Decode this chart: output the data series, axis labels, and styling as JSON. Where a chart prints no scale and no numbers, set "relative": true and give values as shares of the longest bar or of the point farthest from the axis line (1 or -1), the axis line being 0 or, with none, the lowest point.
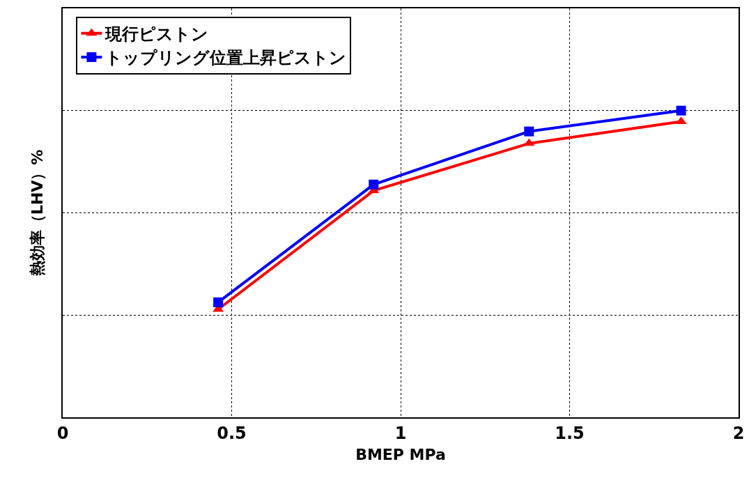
{
  "chart_data": {
    "type": "line",
    "xlabel": "BMEP MPa",
    "ylabel": "熱効率（LHV）%",
    "relative": true,
    "x": [
      0.46,
      0.92,
      1.38,
      1.83
    ],
    "xlim": [
      0,
      2
    ],
    "xticks": [
      0,
      0.5,
      1,
      1.5,
      2
    ],
    "grid": true,
    "legend": "top left",
    "line_style": "solid",
    "series": [
      {
        "name": "現行ピストン",
        "color": "#ff0000",
        "marker": "triangle",
        "values": [
          0.352,
          0.739,
          0.893,
          0.964
        ]
      },
      {
        "name": "トップリング位置上昇ピストン",
        "color": "#0000ff",
        "marker": "square",
        "values": [
          0.375,
          0.759,
          0.932,
          1.0
        ]
      }
    ]
  }
}
